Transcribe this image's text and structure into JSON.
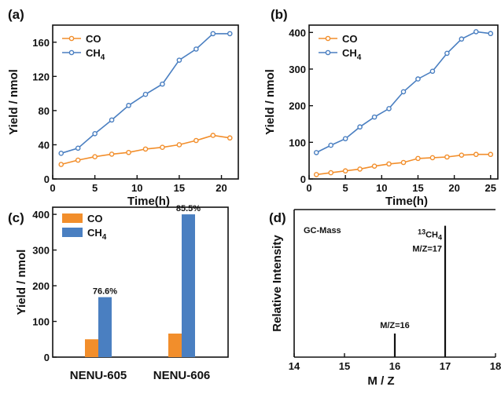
{
  "colors": {
    "co": "#f28e2b",
    "ch4": "#4a7fc1",
    "axis": "#111111"
  },
  "chart_data": [
    {
      "panel": "(a)",
      "type": "line",
      "xlabel": "Time(h)",
      "ylabel": "Yield / nmol",
      "xlim": [
        0,
        22
      ],
      "ylim": [
        0,
        180
      ],
      "xticks": [
        0,
        5,
        10,
        15,
        20
      ],
      "yticks": [
        0,
        40,
        80,
        120,
        160
      ],
      "legend_position": "top-left",
      "series": [
        {
          "name": "CO",
          "sub": "",
          "color": "#f28e2b",
          "x": [
            1,
            3,
            5,
            7,
            9,
            11,
            13,
            15,
            17,
            19,
            21
          ],
          "y": [
            17,
            22,
            26,
            29,
            31,
            35,
            37,
            40,
            45,
            51,
            48
          ]
        },
        {
          "name": "CH",
          "sub": "4",
          "color": "#4a7fc1",
          "x": [
            1,
            3,
            5,
            7,
            9,
            11,
            13,
            15,
            17,
            19,
            21
          ],
          "y": [
            30,
            36,
            53,
            69,
            86,
            99,
            111,
            139,
            152,
            170,
            170
          ]
        }
      ]
    },
    {
      "panel": "(b)",
      "type": "line",
      "xlabel": "Time(h)",
      "ylabel": "Yield / nmol",
      "xlim": [
        0,
        26
      ],
      "ylim": [
        0,
        420
      ],
      "xticks": [
        0,
        5,
        10,
        15,
        20,
        25
      ],
      "yticks": [
        0,
        100,
        200,
        300,
        400
      ],
      "legend_position": "top-left",
      "series": [
        {
          "name": "CO",
          "sub": "",
          "color": "#f28e2b",
          "x": [
            1,
            3,
            5,
            7,
            9,
            11,
            13,
            15,
            17,
            19,
            21,
            23,
            25
          ],
          "y": [
            12,
            17,
            22,
            27,
            35,
            41,
            45,
            56,
            58,
            60,
            65,
            67,
            67
          ]
        },
        {
          "name": "CH",
          "sub": "4",
          "color": "#4a7fc1",
          "x": [
            1,
            3,
            5,
            7,
            9,
            11,
            13,
            15,
            17,
            19,
            21,
            23,
            25
          ],
          "y": [
            72,
            92,
            110,
            142,
            169,
            192,
            238,
            273,
            294,
            343,
            382,
            402,
            397
          ]
        }
      ]
    },
    {
      "panel": "(c)",
      "type": "bar",
      "ylabel": "Yield / nmol",
      "ylim": [
        0,
        420
      ],
      "yticks": [
        0,
        100,
        200,
        300,
        400
      ],
      "categories": [
        "NENU-605",
        "NENU-606"
      ],
      "legend_position": "top-left",
      "series": [
        {
          "name": "CO",
          "sub": "",
          "color": "#f28e2b",
          "values": [
            50,
            66
          ]
        },
        {
          "name": "CH",
          "sub": "4",
          "color": "#4a7fc1",
          "values": [
            168,
            400
          ]
        }
      ],
      "bar_labels": [
        "76.6%",
        "85.5%"
      ]
    },
    {
      "panel": "(d)",
      "type": "bar",
      "xlabel": "M / Z",
      "ylabel": "Relative Intensity",
      "xlim": [
        14,
        18
      ],
      "xticks": [
        14,
        15,
        16,
        17,
        18
      ],
      "ylim": [
        0,
        1
      ],
      "inset_label": "GC-Mass",
      "peaks": [
        {
          "x": 16,
          "intensity": 0.16,
          "label": "M/Z=16"
        },
        {
          "x": 17,
          "intensity": 0.89,
          "label_sup": "13",
          "label_main": "CH",
          "label_sub": "4",
          "label2": "M/Z=17"
        }
      ]
    }
  ]
}
